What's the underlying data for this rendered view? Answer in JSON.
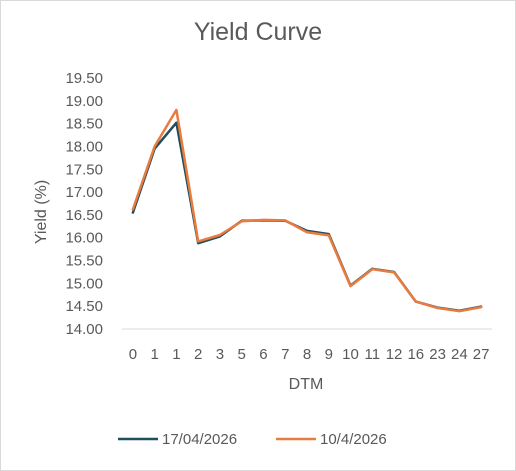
{
  "chart_data": {
    "type": "line",
    "title": "Yield Curve",
    "xlabel": "DTM",
    "ylabel": "Yield (%)",
    "ylim": [
      14.0,
      19.5
    ],
    "y_ticks": [
      "14.00",
      "14.50",
      "15.00",
      "15.50",
      "16.00",
      "16.50",
      "17.00",
      "17.50",
      "18.00",
      "18.50",
      "19.00",
      "19.50"
    ],
    "grid": false,
    "legend_position": "bottom",
    "categories": [
      "0",
      "1",
      "1",
      "2",
      "3",
      "5",
      "6",
      "7",
      "8",
      "9",
      "10",
      "11",
      "12",
      "16",
      "23",
      "24",
      "27"
    ],
    "series": [
      {
        "name": "17/04/2026",
        "color": "#1f4e5f",
        "values": [
          16.55,
          17.95,
          18.52,
          15.88,
          16.03,
          16.37,
          16.38,
          16.37,
          16.15,
          16.08,
          14.95,
          15.32,
          15.25,
          14.6,
          14.47,
          14.4,
          14.49
        ]
      },
      {
        "name": "10/4/2026",
        "color": "#e97b3e",
        "values": [
          16.62,
          18.0,
          18.8,
          15.92,
          16.06,
          16.36,
          16.39,
          16.38,
          16.12,
          16.05,
          14.94,
          15.31,
          15.24,
          14.6,
          14.46,
          14.39,
          14.48
        ]
      }
    ]
  }
}
